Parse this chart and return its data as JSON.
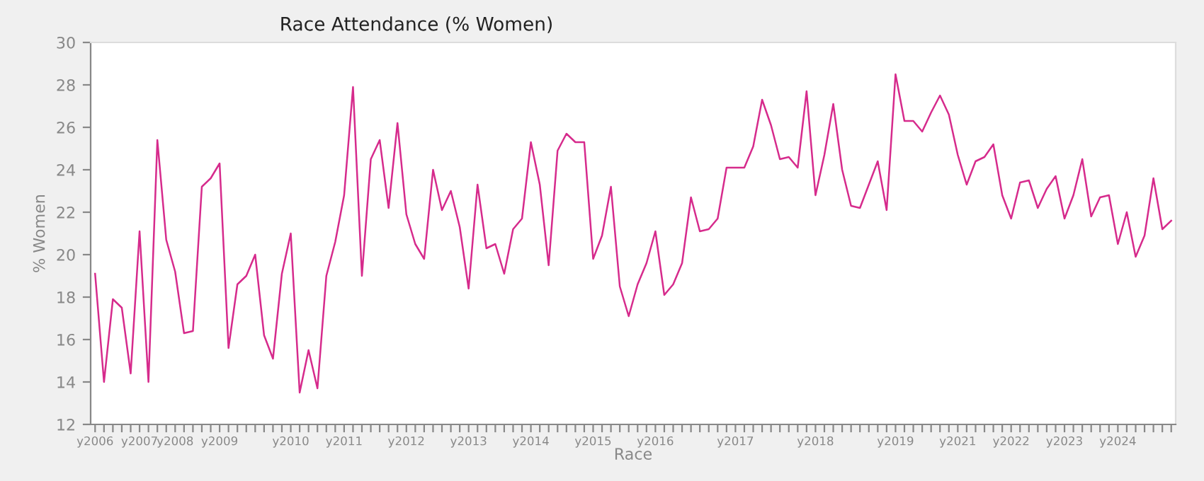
{
  "chart_data": {
    "type": "line",
    "title": "Race Attendance (% Women)",
    "xlabel": "Race",
    "ylabel": "% Women",
    "categories": [
      "y2006",
      null,
      null,
      null,
      null,
      "y2007",
      null,
      null,
      null,
      "y2008",
      null,
      null,
      null,
      null,
      "y2009",
      null,
      null,
      null,
      null,
      null,
      null,
      null,
      "y2010",
      null,
      null,
      null,
      null,
      null,
      "y2011",
      null,
      null,
      null,
      null,
      null,
      null,
      "y2012",
      null,
      null,
      null,
      null,
      null,
      null,
      "y2013",
      null,
      null,
      null,
      null,
      null,
      null,
      "y2014",
      null,
      null,
      null,
      null,
      null,
      null,
      "y2015",
      null,
      null,
      null,
      null,
      null,
      null,
      "y2016",
      null,
      null,
      null,
      null,
      null,
      null,
      null,
      null,
      "y2017",
      null,
      null,
      null,
      null,
      null,
      null,
      null,
      null,
      "y2018",
      null,
      null,
      null,
      null,
      null,
      null,
      null,
      null,
      "y2019",
      null,
      null,
      null,
      null,
      null,
      null,
      "y2021",
      null,
      null,
      null,
      null,
      null,
      "y2022",
      null,
      null,
      null,
      null,
      null,
      "y2023",
      null,
      null,
      null,
      null,
      null,
      "y2024",
      null,
      null,
      null,
      null,
      null,
      null
    ],
    "series": [
      {
        "color": "#d62b8c",
        "values": [
          19.1,
          14.0,
          17.9,
          17.5,
          14.4,
          21.1,
          14.0,
          25.4,
          20.7,
          19.2,
          16.3,
          16.4,
          23.2,
          23.6,
          24.3,
          15.6,
          18.6,
          19.0,
          20.0,
          16.2,
          15.1,
          19.1,
          21.0,
          13.5,
          15.5,
          13.7,
          19.0,
          20.6,
          22.8,
          27.9,
          19.0,
          24.5,
          25.4,
          22.2,
          26.2,
          21.9,
          20.5,
          19.8,
          24.0,
          22.1,
          23.0,
          21.3,
          18.4,
          23.3,
          20.3,
          20.5,
          19.1,
          21.2,
          21.7,
          25.3,
          23.3,
          19.5,
          24.9,
          25.7,
          25.3,
          25.3,
          19.8,
          20.9,
          23.2,
          18.5,
          17.1,
          18.6,
          19.6,
          21.1,
          18.1,
          18.6,
          19.6,
          22.7,
          21.1,
          21.2,
          21.7,
          24.1,
          24.1,
          24.1,
          25.1,
          27.3,
          26.1,
          24.5,
          24.6,
          24.1,
          27.7,
          22.8,
          24.7,
          27.1,
          24.0,
          22.3,
          22.2,
          23.3,
          24.4,
          22.1,
          28.5,
          26.3,
          26.3,
          25.8,
          26.7,
          27.5,
          26.6,
          24.7,
          23.3,
          24.4,
          24.6,
          25.2,
          22.8,
          21.7,
          23.4,
          23.5,
          22.2,
          23.1,
          23.7,
          21.7,
          22.8,
          24.5,
          21.8,
          22.7,
          22.8,
          20.5,
          22.0,
          19.9,
          20.9,
          23.6,
          21.2,
          21.6
        ]
      }
    ],
    "ylim": [
      12,
      30
    ],
    "yticks": [
      12,
      14,
      16,
      18,
      20,
      22,
      24,
      26,
      28,
      30
    ],
    "grid": false,
    "marker": "none",
    "line_style": "solid"
  }
}
